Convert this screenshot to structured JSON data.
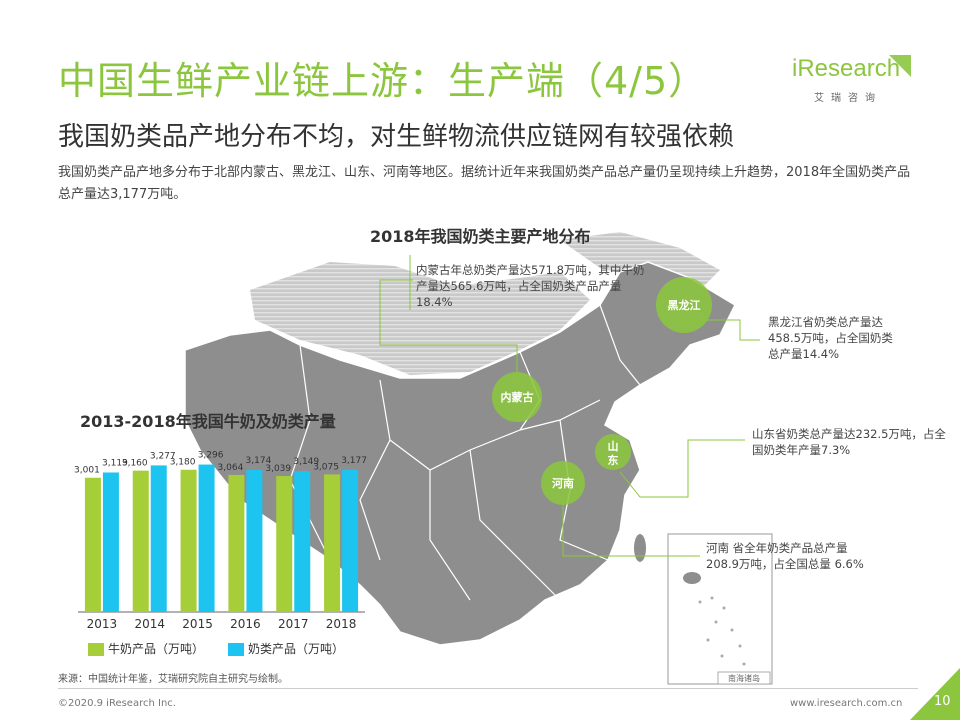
{
  "header": {
    "title": "中国生鲜产业链上游：生产端（4/5）",
    "subtitle": "我国奶类品产地分布不均，对生鲜物流供应链网有较强依赖",
    "description": "我国奶类产品产地多分布于北部内蒙古、黑龙江、山东、河南等地区。据统计近年来我国奶类产品总产量仍呈现持续上升趋势，2018年全国奶类产品总产量达3,177万吨。"
  },
  "logo": {
    "word": "iResearch",
    "sub": "艾瑞咨询"
  },
  "map": {
    "title": "2018年我国奶类主要产地分布",
    "inset_label": "南海诸岛",
    "regions": [
      {
        "name": "内蒙古",
        "note": "内蒙古年总奶类产量达571.8万吨，其中牛奶产量达565.6万吨，占全国奶类产品产量18.4%"
      },
      {
        "name": "黑龙江",
        "note": "黑龙江省奶类总产量达458.5万吨，占全国奶类总产量14.4%"
      },
      {
        "name": "山东",
        "note": "山东省奶类总产量达232.5万吨，占全国奶类年产量7.3%"
      },
      {
        "name": "河南",
        "note": "河南 省全年奶类产品总产量 208.9万吨，占全国总量 6.6%"
      }
    ],
    "colors": {
      "circle": "#8cc63f",
      "leader": "#8cc63f",
      "land": "#8e8e8e",
      "land_light": "#c7c7c7"
    }
  },
  "chart_data": {
    "type": "bar",
    "title": "2013-2018年我国牛奶及奶类产量",
    "categories": [
      "2013",
      "2014",
      "2015",
      "2016",
      "2017",
      "2018"
    ],
    "series": [
      {
        "name": "牛奶产品（万吨）",
        "color": "#a6ce39",
        "values": [
          3001,
          3160,
          3180,
          3064,
          3039,
          3075
        ],
        "labels": [
          "3,001",
          "3,160",
          "3,180",
          "3,064",
          "3,039",
          "3,075"
        ]
      },
      {
        "name": "奶类产品（万吨）",
        "color": "#1ec4f0",
        "values": [
          3119,
          3277,
          3296,
          3174,
          3149,
          3177
        ],
        "labels": [
          "3,119",
          "3,277",
          "3,296",
          "3,174",
          "3,149",
          "3,177"
        ]
      }
    ],
    "ylim": [
      0,
      3800
    ],
    "legend": "bottom"
  },
  "footer": {
    "source": "来源：中国统计年鉴，艾瑞研究院自主研究与绘制。",
    "copyright": "©2020.9 iResearch Inc.",
    "website": "www.iresearch.com.cn",
    "page": "10"
  }
}
